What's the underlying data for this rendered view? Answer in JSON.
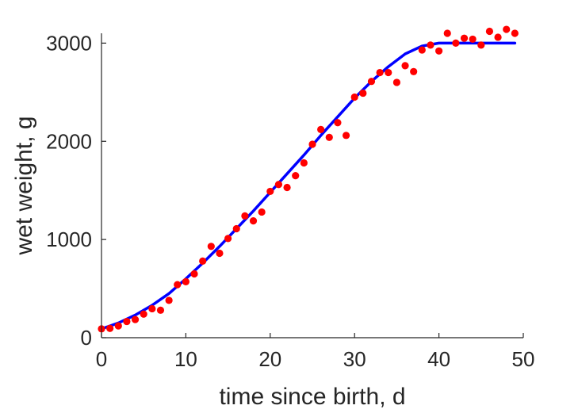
{
  "chart_data": {
    "type": "scatter",
    "xlabel": "time since birth, d",
    "ylabel": "wet weight, g",
    "xlim": [
      0,
      50
    ],
    "ylim": [
      0,
      3100
    ],
    "xticks": [
      0,
      10,
      20,
      30,
      40,
      50
    ],
    "yticks": [
      0,
      1000,
      2000,
      3000
    ],
    "xtick_labels": [
      "0",
      "10",
      "20",
      "30",
      "40",
      "50"
    ],
    "ytick_labels": [
      "0",
      "1000",
      "2000",
      "3000"
    ],
    "grid": false,
    "series": [
      {
        "type": "scatter",
        "color": "#ff0000",
        "x": [
          0,
          1,
          2,
          3,
          4,
          5,
          6,
          7,
          8,
          9,
          10,
          11,
          12,
          13,
          14,
          15,
          16,
          17,
          18,
          19,
          20,
          21,
          22,
          23,
          24,
          25,
          26,
          27,
          28,
          29,
          30,
          31,
          32,
          33,
          34,
          35,
          36,
          37,
          38,
          39,
          40,
          41,
          42,
          43,
          44,
          45,
          46,
          47,
          48,
          49
        ],
        "y": [
          90,
          95,
          120,
          165,
          185,
          240,
          295,
          280,
          380,
          540,
          570,
          650,
          780,
          930,
          860,
          1010,
          1110,
          1240,
          1190,
          1280,
          1490,
          1560,
          1530,
          1650,
          1780,
          1970,
          2120,
          2040,
          2190,
          2060,
          2450,
          2490,
          2610,
          2700,
          2700,
          2600,
          2770,
          2710,
          2930,
          2980,
          2920,
          3100,
          3000,
          3050,
          3040,
          2980,
          3120,
          3060,
          3140,
          3100
        ]
      },
      {
        "type": "line",
        "color": "#0000ff",
        "x": [
          0,
          2,
          4,
          6,
          8,
          10,
          12,
          14,
          16,
          18,
          20,
          22,
          24,
          26,
          28,
          30,
          32,
          34,
          36,
          38,
          40,
          42,
          44,
          46,
          48,
          49
        ],
        "y": [
          90,
          150,
          230,
          330,
          450,
          600,
          760,
          930,
          1110,
          1290,
          1480,
          1670,
          1860,
          2060,
          2250,
          2440,
          2610,
          2760,
          2890,
          2970,
          3000,
          3000,
          3000,
          3000,
          3000,
          3000
        ]
      }
    ]
  }
}
